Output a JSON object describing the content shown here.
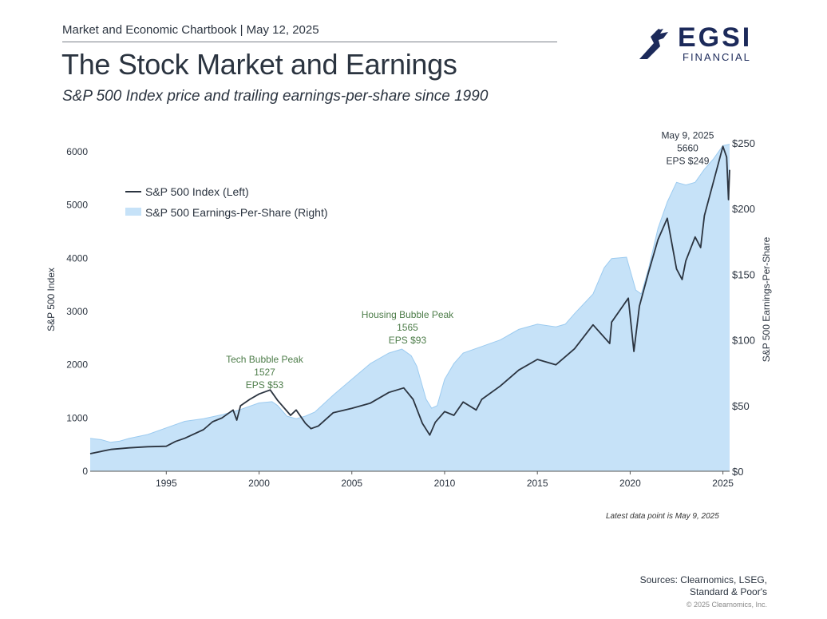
{
  "header": {
    "chartbook": "Market and Economic Chartbook | May 12, 2025",
    "title": "The Stock Market and Earnings",
    "subtitle": "S&P 500 Index price and trailing earnings-per-share since 1990"
  },
  "logo": {
    "name": "EGSI",
    "sub": "FINANCIAL",
    "icon": "eagle-icon"
  },
  "colors": {
    "index_line": "#2b3440",
    "eps_fill": "#c6e2f8",
    "eps_stroke": "#9ccbf0",
    "annotation_green": "#4e7d4a",
    "axis_text": "#2b3440"
  },
  "chart_data": {
    "type": "area",
    "legend_position": "top-left",
    "grid": false,
    "x_ticks": [
      "1995",
      "2000",
      "2005",
      "2010",
      "2015",
      "2020",
      "2025"
    ],
    "y_left": {
      "label": "S&P 500 Index",
      "range": [
        0,
        6100
      ],
      "ticks": [
        "0",
        "1000",
        "2000",
        "3000",
        "4000",
        "5000",
        "6000"
      ]
    },
    "y_right": {
      "label": "S&P 500 Earnings-Per-Share",
      "range": [
        0,
        250
      ],
      "ticks": [
        "$0",
        "$50",
        "$100",
        "$150",
        "$200",
        "$250"
      ]
    },
    "series": [
      {
        "name": "S&P 500 Index (Left)",
        "kind": "line",
        "points": [
          [
            1990.9,
            330
          ],
          [
            1992,
            410
          ],
          [
            1993,
            440
          ],
          [
            1994,
            460
          ],
          [
            1995,
            470
          ],
          [
            1995.5,
            560
          ],
          [
            1996,
            620
          ],
          [
            1997,
            780
          ],
          [
            1997.5,
            930
          ],
          [
            1998,
            1000
          ],
          [
            1998.6,
            1150
          ],
          [
            1998.8,
            960
          ],
          [
            1999,
            1230
          ],
          [
            1999.5,
            1350
          ],
          [
            2000,
            1450
          ],
          [
            2000.6,
            1527
          ],
          [
            2001,
            1330
          ],
          [
            2001.7,
            1050
          ],
          [
            2002,
            1150
          ],
          [
            2002.5,
            900
          ],
          [
            2002.8,
            800
          ],
          [
            2003.2,
            850
          ],
          [
            2004,
            1100
          ],
          [
            2005,
            1180
          ],
          [
            2006,
            1280
          ],
          [
            2007,
            1480
          ],
          [
            2007.8,
            1565
          ],
          [
            2008.3,
            1350
          ],
          [
            2008.8,
            900
          ],
          [
            2009.2,
            680
          ],
          [
            2009.5,
            920
          ],
          [
            2010,
            1120
          ],
          [
            2010.5,
            1050
          ],
          [
            2011,
            1300
          ],
          [
            2011.7,
            1150
          ],
          [
            2012,
            1350
          ],
          [
            2013,
            1600
          ],
          [
            2014,
            1900
          ],
          [
            2015,
            2100
          ],
          [
            2016,
            2000
          ],
          [
            2016.5,
            2150
          ],
          [
            2017,
            2300
          ],
          [
            2018,
            2750
          ],
          [
            2018.9,
            2400
          ],
          [
            2019,
            2800
          ],
          [
            2019.9,
            3250
          ],
          [
            2020.2,
            2250
          ],
          [
            2020.5,
            3100
          ],
          [
            2021,
            3750
          ],
          [
            2021.5,
            4350
          ],
          [
            2022,
            4750
          ],
          [
            2022.5,
            3800
          ],
          [
            2022.8,
            3600
          ],
          [
            2023,
            3950
          ],
          [
            2023.5,
            4400
          ],
          [
            2023.8,
            4200
          ],
          [
            2024,
            4800
          ],
          [
            2024.5,
            5450
          ],
          [
            2025,
            6100
          ],
          [
            2025.2,
            5900
          ],
          [
            2025.3,
            5100
          ],
          [
            2025.36,
            5660
          ]
        ]
      },
      {
        "name": "S&P 500 Earnings-Per-Share (Right)",
        "kind": "area",
        "points": [
          [
            1990.9,
            25
          ],
          [
            1991.5,
            24
          ],
          [
            1992,
            22
          ],
          [
            1992.5,
            23
          ],
          [
            1993,
            25
          ],
          [
            1994,
            28
          ],
          [
            1995,
            33
          ],
          [
            1996,
            38
          ],
          [
            1997,
            40
          ],
          [
            1998,
            43
          ],
          [
            1999,
            47
          ],
          [
            2000,
            52
          ],
          [
            2000.7,
            53
          ],
          [
            2001,
            50
          ],
          [
            2001.5,
            42
          ],
          [
            2002,
            40
          ],
          [
            2002.5,
            42
          ],
          [
            2003,
            45
          ],
          [
            2004,
            58
          ],
          [
            2005,
            70
          ],
          [
            2006,
            82
          ],
          [
            2007,
            90
          ],
          [
            2007.7,
            93
          ],
          [
            2008.2,
            88
          ],
          [
            2008.5,
            80
          ],
          [
            2009,
            55
          ],
          [
            2009.3,
            48
          ],
          [
            2009.6,
            50
          ],
          [
            2010,
            70
          ],
          [
            2010.5,
            82
          ],
          [
            2011,
            90
          ],
          [
            2012,
            95
          ],
          [
            2013,
            100
          ],
          [
            2014,
            108
          ],
          [
            2015,
            112
          ],
          [
            2016,
            110
          ],
          [
            2016.5,
            112
          ],
          [
            2017,
            120
          ],
          [
            2018,
            135
          ],
          [
            2018.6,
            155
          ],
          [
            2019,
            162
          ],
          [
            2019.8,
            163
          ],
          [
            2020.3,
            138
          ],
          [
            2020.6,
            135
          ],
          [
            2021,
            155
          ],
          [
            2021.5,
            185
          ],
          [
            2022,
            205
          ],
          [
            2022.5,
            220
          ],
          [
            2023,
            218
          ],
          [
            2023.5,
            220
          ],
          [
            2024,
            230
          ],
          [
            2024.5,
            238
          ],
          [
            2025,
            248
          ],
          [
            2025.36,
            249
          ]
        ]
      }
    ],
    "annotations": [
      {
        "lines": [
          "Tech Bubble Peak",
          "1527",
          "EPS $53"
        ],
        "color": "green",
        "x": 2000.3,
        "y_left": 2040
      },
      {
        "lines": [
          "Housing Bubble Peak",
          "1565",
          "EPS $93"
        ],
        "color": "green",
        "x": 2008.0,
        "y_left": 2880
      },
      {
        "lines": [
          "May 9, 2025",
          "5660",
          "EPS $249"
        ],
        "color": "dark",
        "x": 2023.1,
        "y_left": 6250
      }
    ]
  },
  "footer": {
    "note": "Latest data point is May 9, 2025",
    "sources_line1": "Sources: Clearnomics, LSEG,",
    "sources_line2": "Standard & Poor's",
    "copyright": "© 2025 Clearnomics, Inc."
  }
}
